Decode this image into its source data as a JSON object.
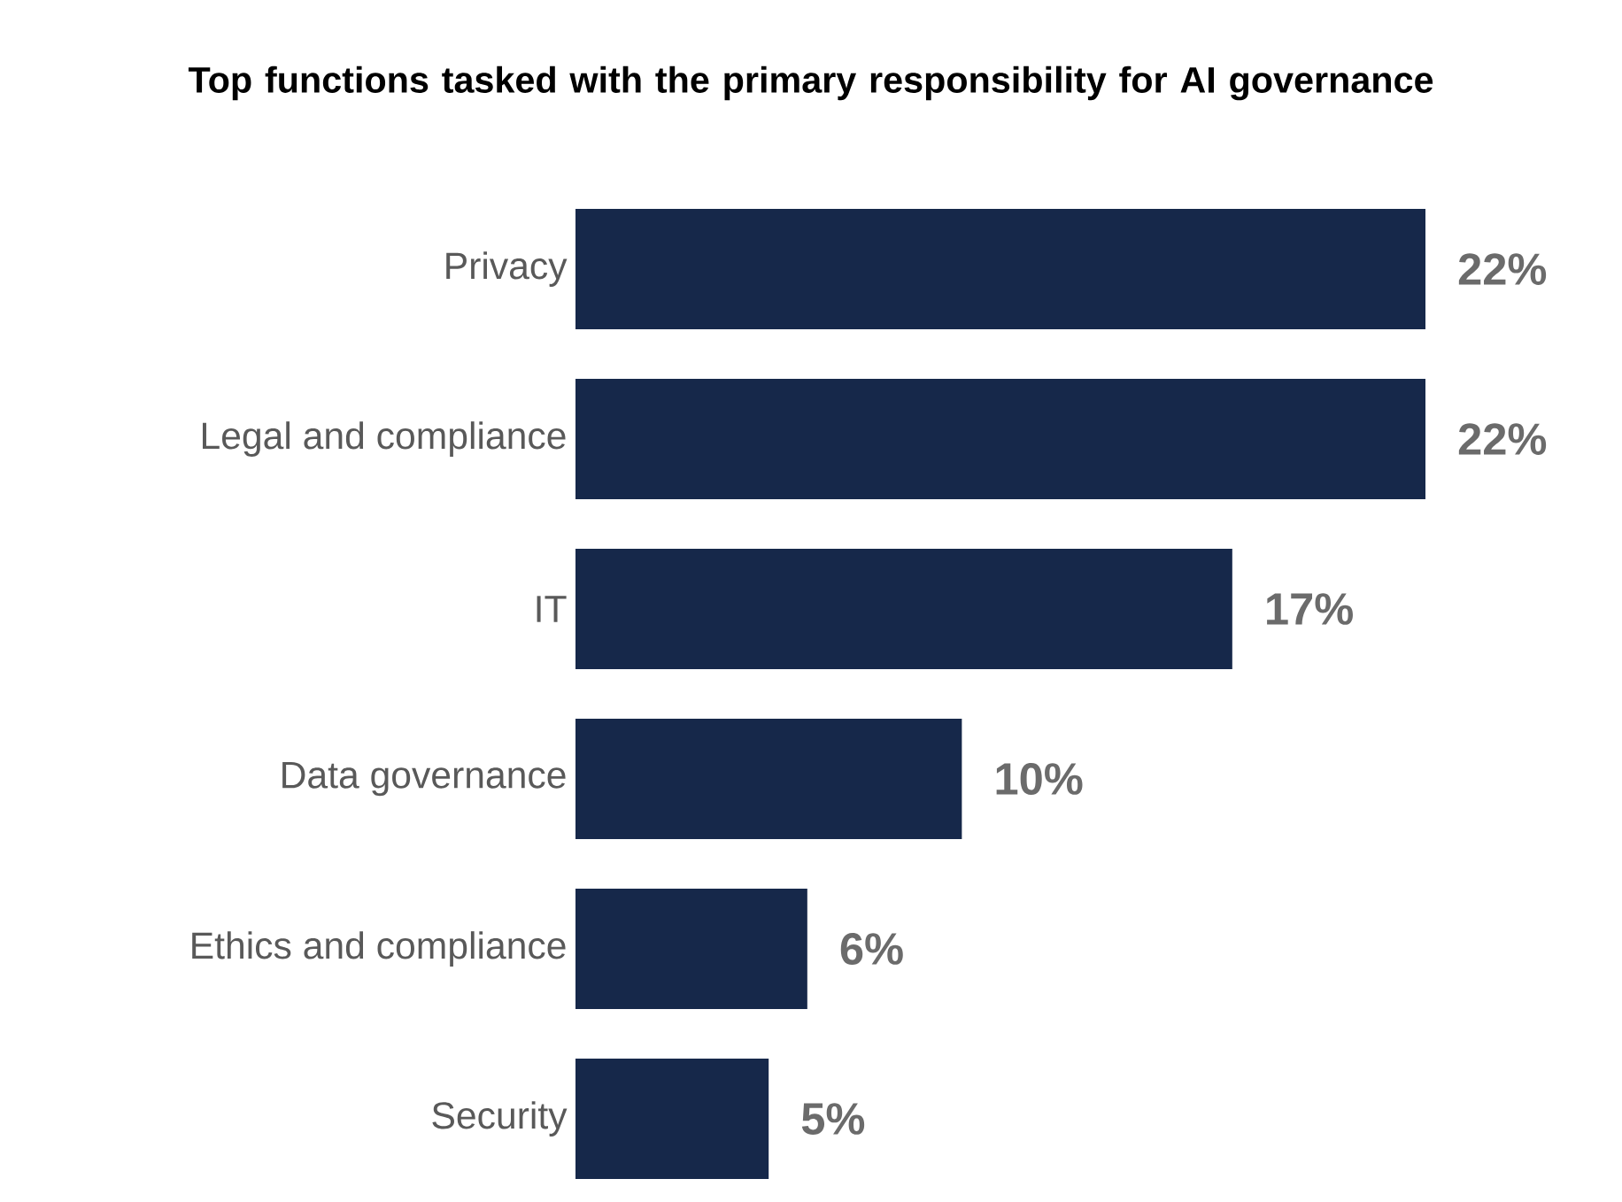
{
  "chart_data": {
    "type": "bar",
    "orientation": "horizontal",
    "title": "Top functions tasked with the primary responsibility for AI governance",
    "categories": [
      "Privacy",
      "Legal and compliance",
      "IT",
      "Data governance",
      "Ethics and compliance",
      "Security"
    ],
    "values": [
      22,
      22,
      17,
      10,
      6,
      5
    ],
    "value_labels": [
      "22%",
      "22%",
      "17%",
      "10%",
      "6%",
      "5%"
    ],
    "color": "#16284a"
  }
}
